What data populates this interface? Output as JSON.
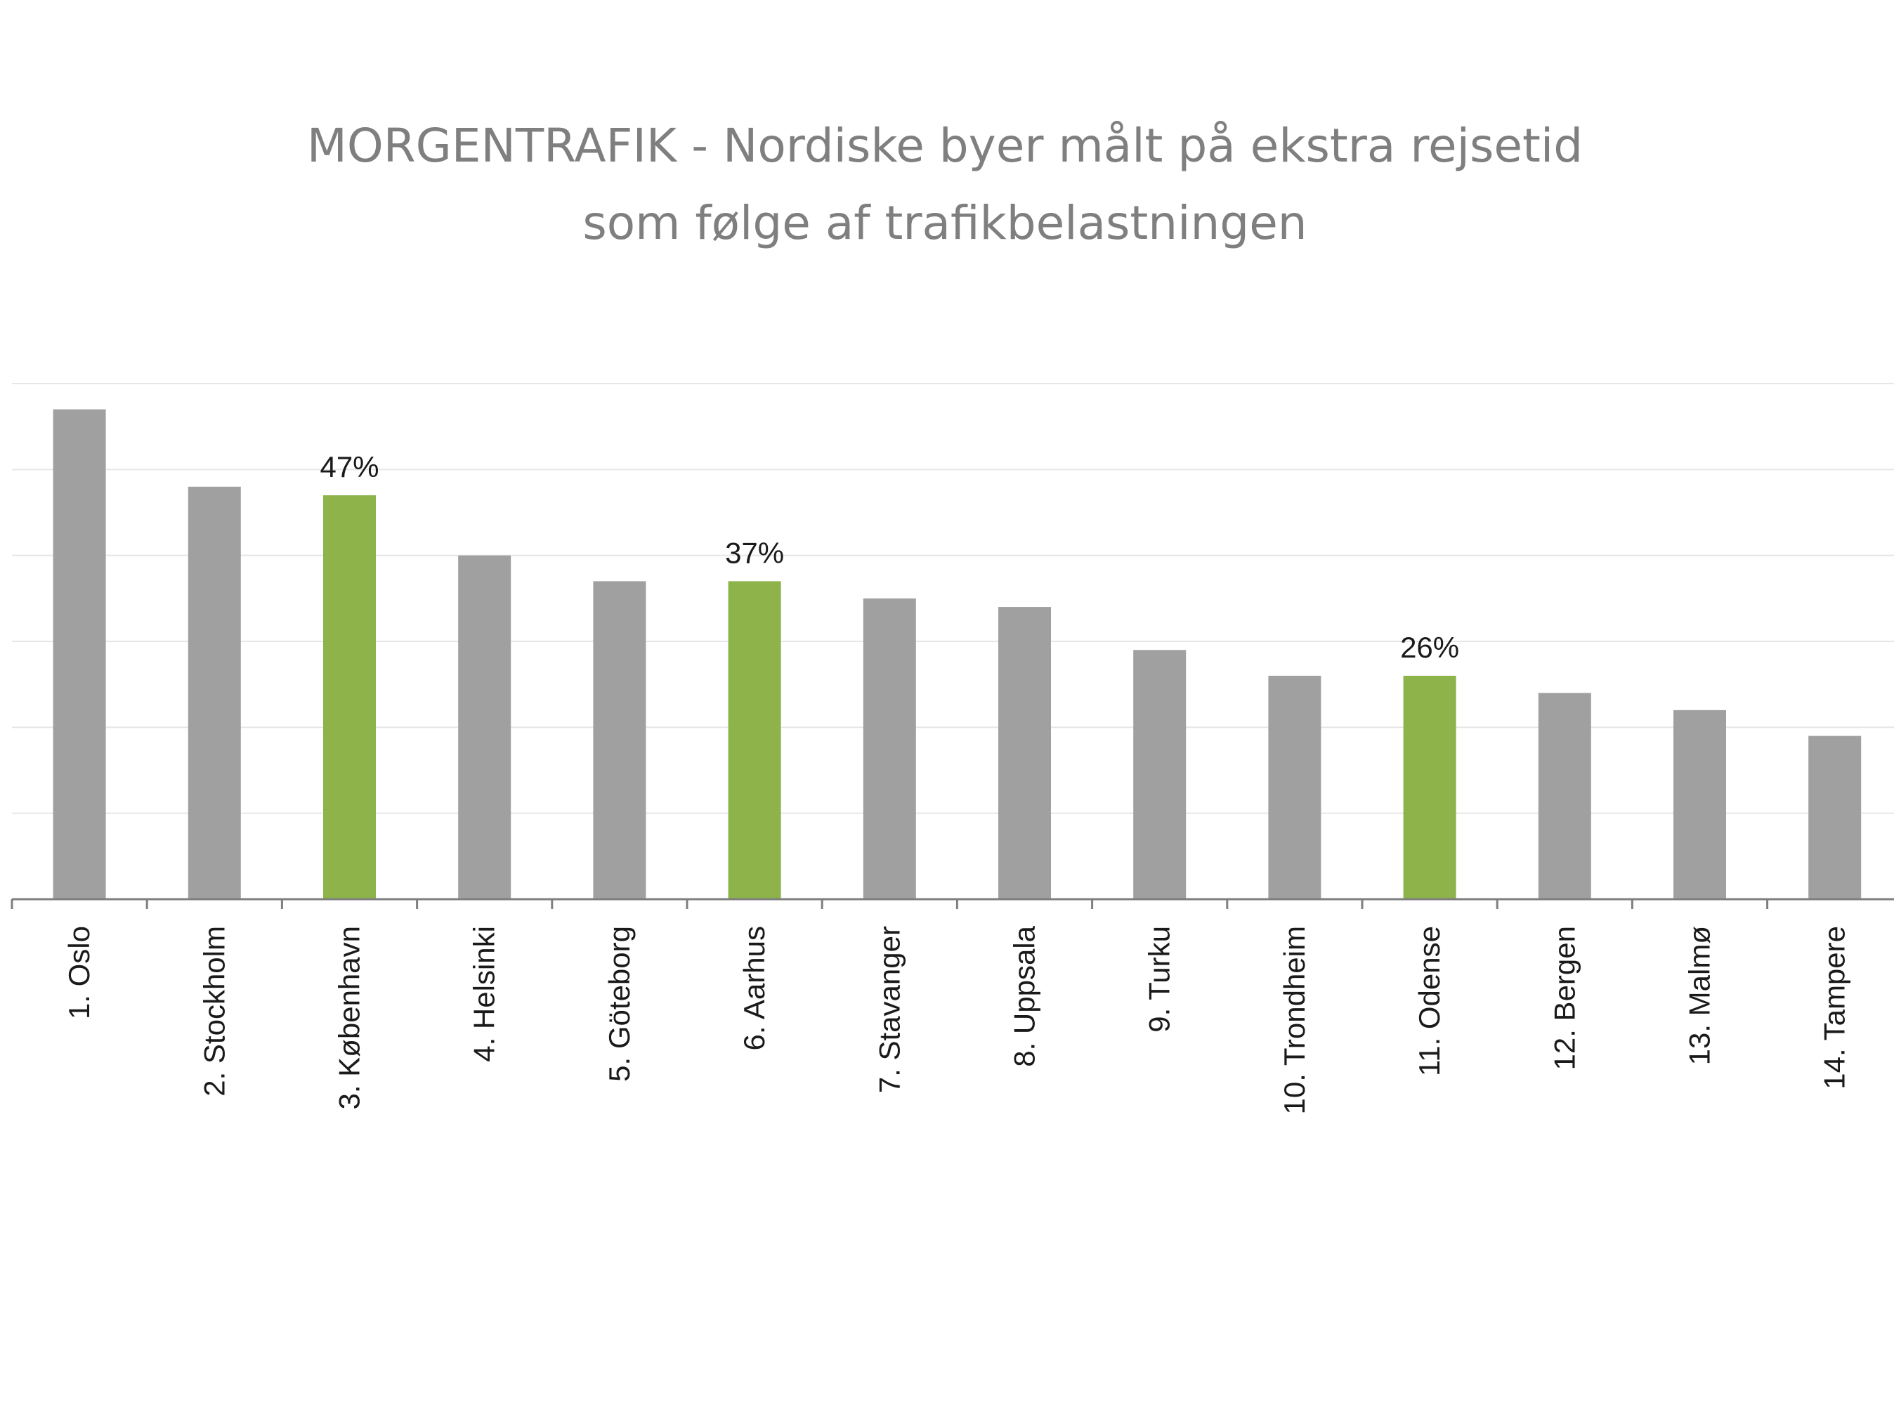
{
  "chart_data": {
    "type": "bar",
    "title_lines": [
      "MORGENTRAFIK  - Nordiske byer målt på ekstra rejsetid",
      "som følge af trafikbelastningen"
    ],
    "categories": [
      "1. Oslo",
      "2. Stockholm",
      "3. København",
      "4. Helsinki",
      "5. Göteborg",
      "6. Aarhus",
      "7. Stavanger",
      "8. Uppsala",
      "9. Turku",
      "10. Trondheim",
      "11. Odense",
      "12. Bergen",
      "13. Malmø",
      "14. Tampere"
    ],
    "values": [
      57,
      48,
      47,
      40,
      37,
      37,
      35,
      34,
      29,
      26,
      26,
      24,
      22,
      19
    ],
    "highlighted": [
      false,
      false,
      true,
      false,
      false,
      true,
      false,
      false,
      false,
      false,
      true,
      false,
      false,
      false
    ],
    "data_labels": [
      "",
      "",
      "47%",
      "",
      "",
      "37%",
      "",
      "",
      "",
      "",
      "26%",
      "",
      "",
      ""
    ],
    "xlabel": "",
    "ylabel": "",
    "ylim": [
      0,
      60
    ],
    "grid": true,
    "colors": {
      "default_bar": "#a0a0a0",
      "highlight_bar": "#8db34a",
      "gridline": "#e6e6e6",
      "axis": "#7f7f7f",
      "title": "#7f7f7f"
    }
  }
}
